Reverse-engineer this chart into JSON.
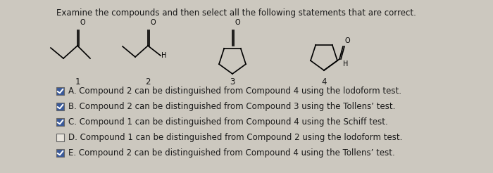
{
  "title": "Examine the compounds and then select all the following statements that are correct.",
  "compound_labels": [
    "1",
    "2",
    "3",
    "4"
  ],
  "statements": [
    {
      "label": "A.",
      "text": "Compound 2 can be distinguished from Compound 4 using the lodoform test.",
      "checked": true
    },
    {
      "label": "B.",
      "text": "Compound 2 can be distinguished from Compound 3 using the Tollens’ test.",
      "checked": true
    },
    {
      "label": "C.",
      "text": "Compound 1 can be distinguished from Compound 4 using the Schiff test.",
      "checked": true
    },
    {
      "label": "D.",
      "text": "Compound 1 can be distinguished from Compound 2 using the lodoform test.",
      "checked": false
    },
    {
      "label": "E.",
      "text": "Compound 2 can be distinguished from Compound 4 using the Tollens’ test.",
      "checked": true
    }
  ],
  "bg_color": "#ccc8bf",
  "text_color": "#1a1a1a",
  "title_fontsize": 8.5,
  "statement_fontsize": 8.5,
  "check_color": "#3a5a9a",
  "compound_label_fontsize": 8.5
}
